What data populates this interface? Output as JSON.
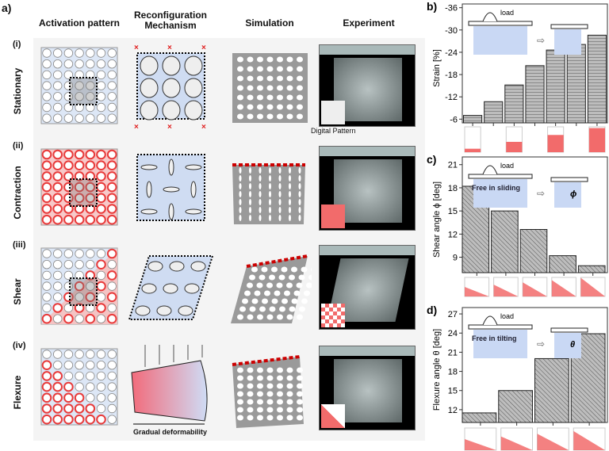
{
  "panel_a": {
    "label": "a)",
    "columns": [
      "Activation pattern",
      "Reconfiguration\nMechanism",
      "Simulation",
      "Experiment"
    ],
    "rows": [
      {
        "num": "(i)",
        "name": "Stationary"
      },
      {
        "num": "(ii)",
        "name": "Contraction"
      },
      {
        "num": "(iii)",
        "name": "Shear"
      },
      {
        "num": "(iv)",
        "name": "Flexure"
      }
    ],
    "digital_pattern_label": "Digital Pattern",
    "gradual_label": "Gradual deformability"
  },
  "colors": {
    "active": "#e83a3a",
    "passive": "#d4e0f4",
    "bar": "#b0b0b0",
    "pattern_red": "#f26b6b"
  },
  "chart_data": [
    {
      "panel": "b)",
      "type": "bar",
      "ylabel": "Strain [%]",
      "ylim": [
        -5,
        -37
      ],
      "yticks": [
        -36,
        -30,
        -24,
        -18,
        -12,
        -6
      ],
      "values": [
        -7.0,
        -10.7,
        -15.2,
        -20.4,
        -24.6,
        -26.1,
        -28.6
      ],
      "hatch": "horizontal",
      "inset": {
        "load": "load"
      }
    },
    {
      "panel": "c)",
      "type": "bar",
      "ylabel": "Shear angle ϕ [deg]",
      "ylim": [
        7,
        22
      ],
      "yticks": [
        9,
        12,
        15,
        18,
        21
      ],
      "values": [
        18.2,
        15.0,
        12.6,
        9.2,
        7.9
      ],
      "hatch": "diagonal",
      "inset": {
        "load": "load",
        "free": "Free in sliding",
        "symbol": "ϕ"
      }
    },
    {
      "panel": "d)",
      "type": "bar",
      "ylabel": "Flexure angle θ [deg]",
      "ylim": [
        10,
        28
      ],
      "yticks": [
        12,
        15,
        18,
        21,
        24,
        27
      ],
      "values": [
        11.5,
        15.0,
        20.0,
        23.9
      ],
      "hatch": "diagonal",
      "inset": {
        "load": "load",
        "free": "Free in tilting",
        "symbol": "θ"
      }
    }
  ]
}
